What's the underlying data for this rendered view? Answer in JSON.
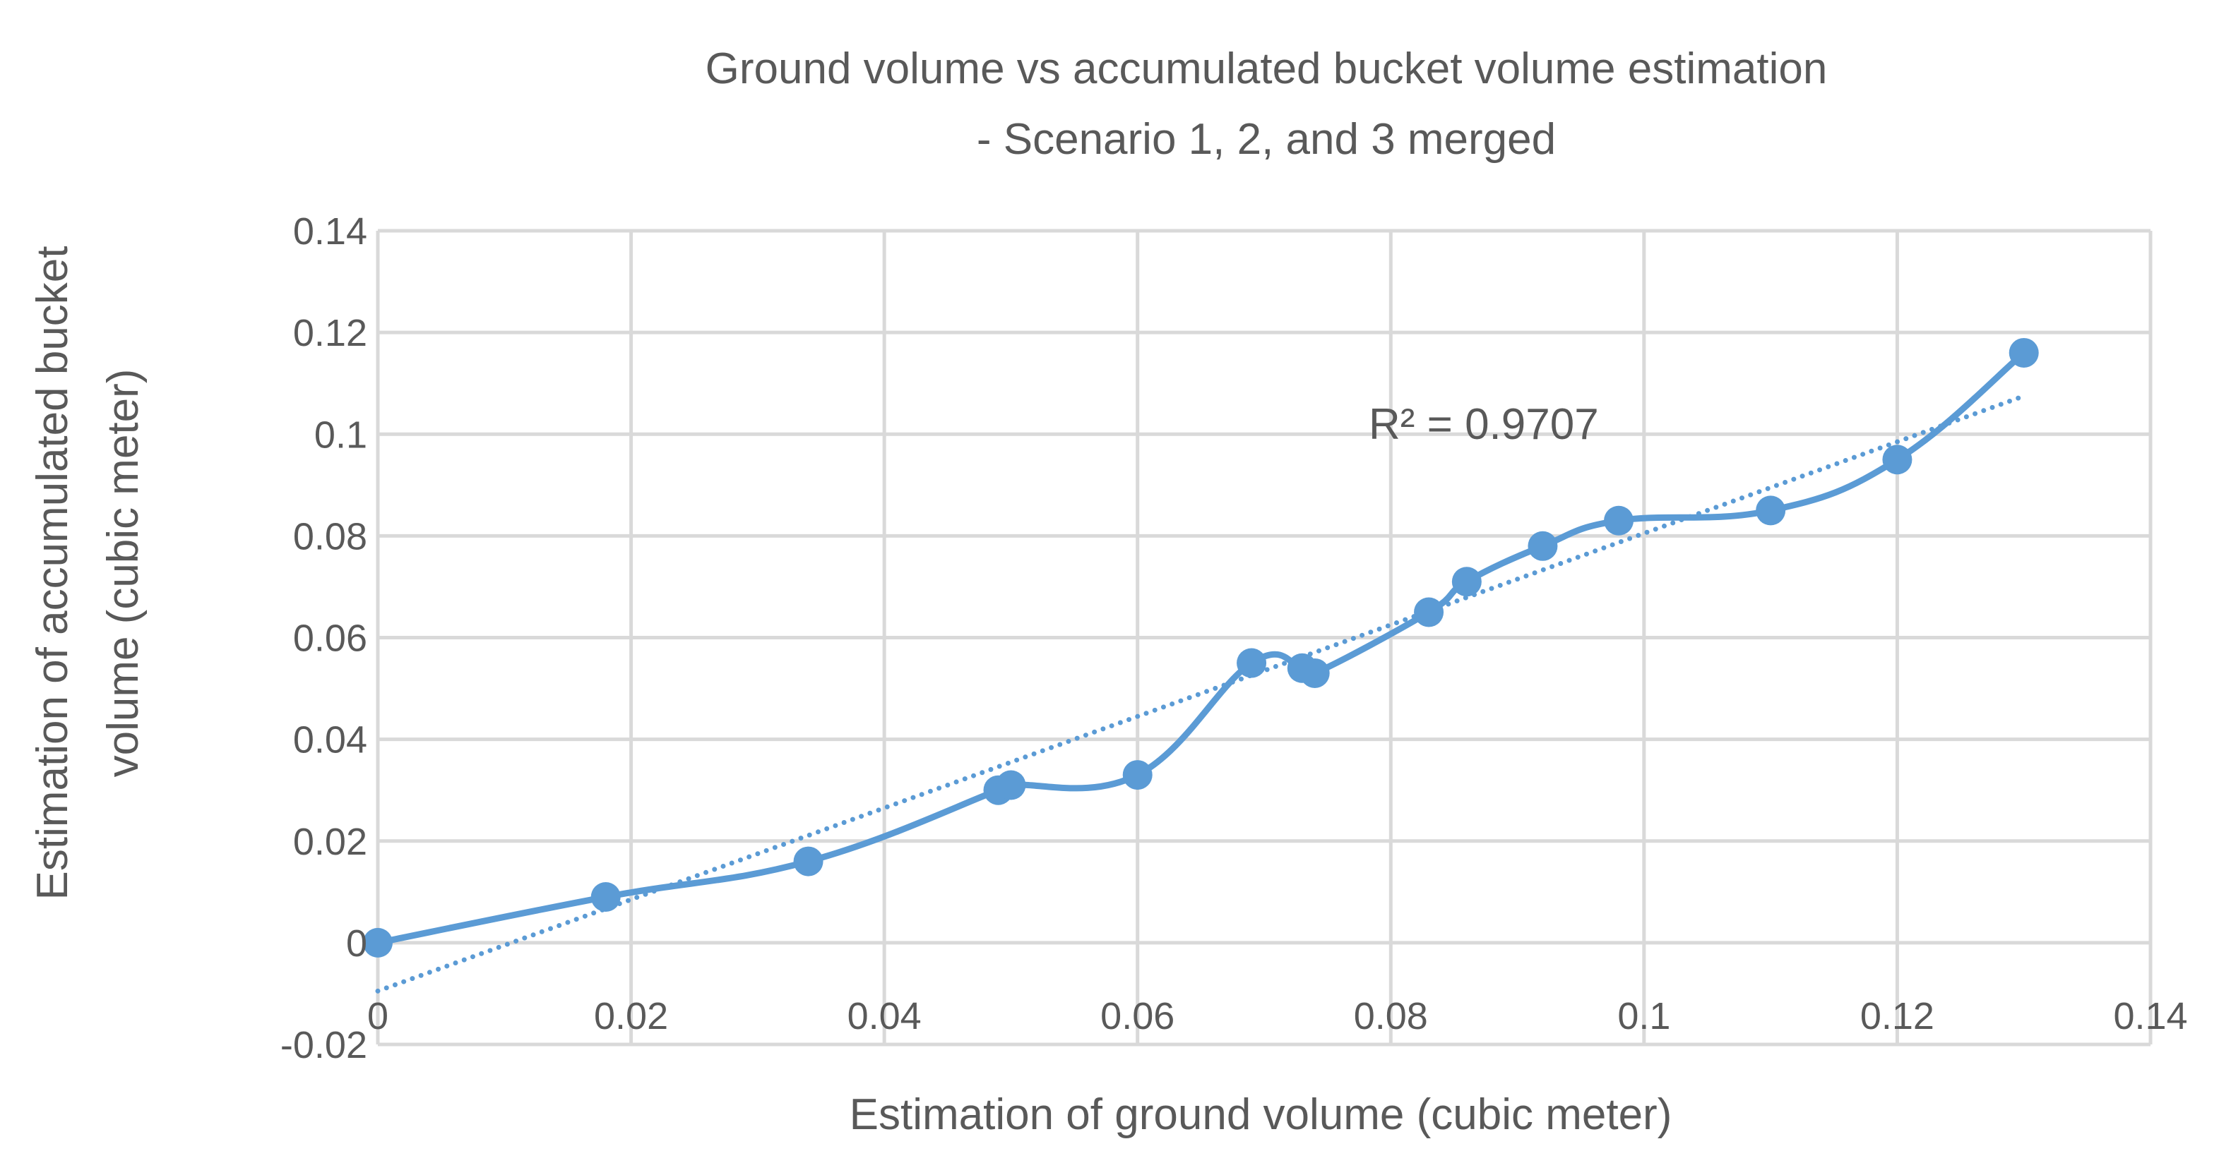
{
  "chart_data": {
    "type": "scatter",
    "title": "Ground volume vs accumulated bucket volume estimation",
    "subtitle": "- Scenario 1, 2, and 3 merged",
    "xlabel": "Estimation of ground volume (cubic meter)",
    "ylabel_line1": "Estimation of accumulated bucket",
    "ylabel_line2": "volume (cubic meter)",
    "xlim": [
      0,
      0.14
    ],
    "ylim": [
      -0.02,
      0.14
    ],
    "grid": true,
    "x_ticks": [
      0,
      0.02,
      0.04,
      0.06,
      0.08,
      0.1,
      0.12,
      0.14
    ],
    "x_tick_labels": [
      "0",
      "0.02",
      "0.04",
      "0.06",
      "0.08",
      "0.1",
      "0.12",
      "0.14"
    ],
    "y_ticks": [
      -0.02,
      0,
      0.02,
      0.04,
      0.06,
      0.08,
      0.1,
      0.12,
      0.14
    ],
    "y_tick_labels": [
      "-0.02",
      "0",
      "0.02",
      "0.04",
      "0.06",
      "0.08",
      "0.1",
      "0.12",
      "0.14"
    ],
    "series": [
      {
        "name": "Scenario 1, 2, and 3 merged",
        "color": "#5b9bd5",
        "line_style": "smooth",
        "x": [
          0,
          0.018,
          0.034,
          0.049,
          0.05,
          0.06,
          0.069,
          0.073,
          0.074,
          0.083,
          0.086,
          0.092,
          0.098,
          0.11,
          0.12,
          0.13
        ],
        "y": [
          0,
          0.009,
          0.016,
          0.03,
          0.031,
          0.033,
          0.055,
          0.054,
          0.053,
          0.065,
          0.071,
          0.078,
          0.083,
          0.085,
          0.095,
          0.116
        ]
      }
    ],
    "trendline": {
      "type": "linear",
      "color": "#5b9bd5",
      "style": "dotted",
      "x_start": 0,
      "x_end": 0.13,
      "y_start": -0.0095,
      "y_end": 0.1075,
      "label": "R² = 0.9707"
    }
  }
}
